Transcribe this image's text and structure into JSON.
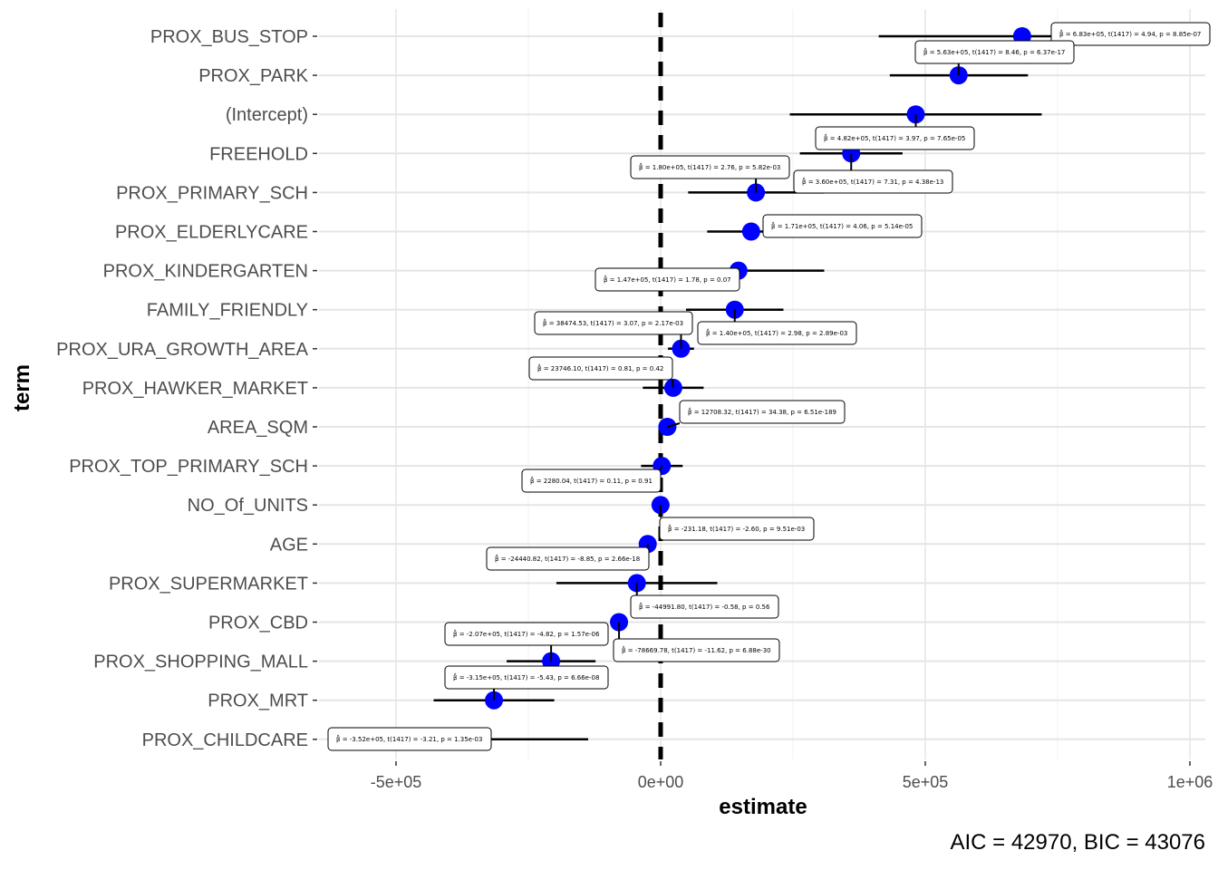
{
  "chart_data": {
    "type": "coefficient-plot",
    "xlabel": "estimate",
    "ylabel": "term",
    "caption": "AIC = 42970, BIC = 43076",
    "xlim": [
      -620000,
      1050000
    ],
    "xticks": [
      -500000,
      0,
      500000,
      1000000
    ],
    "xtick_labels": [
      "-5e+05",
      "0e+00",
      "5e+05",
      "1e+06"
    ],
    "reference_line": 0,
    "point_color": "#0000ff",
    "terms": [
      {
        "term": "PROX_BUS_STOP",
        "estimate": 683000,
        "low": 412000,
        "high": 955000,
        "label": "β̂ = 6.83e+05, t(1417) = 4.94, p = 8.85e-07"
      },
      {
        "term": "PROX_PARK",
        "estimate": 563000,
        "low": 433000,
        "high": 694000,
        "label": "β̂ = 5.63e+05, t(1417) = 8.46, p = 6.37e-17"
      },
      {
        "term": "(Intercept)",
        "estimate": 482000,
        "low": 244000,
        "high": 720000,
        "label": "β̂ = 4.82e+05, t(1417) = 3.97, p = 7.65e-05"
      },
      {
        "term": "FREEHOLD",
        "estimate": 360000,
        "low": 263000,
        "high": 457000,
        "label": "β̂ = 3.60e+05, t(1417) = 7.31, p = 4.38e-13"
      },
      {
        "term": "PROX_PRIMARY_SCH",
        "estimate": 180000,
        "low": 52000,
        "high": 308000,
        "label": "β̂ = 1.80e+05, t(1417) = 2.76, p = 5.82e-03"
      },
      {
        "term": "PROX_ELDERLYCARE",
        "estimate": 171000,
        "low": 88000,
        "high": 254000,
        "label": "β̂ = 1.71e+05, t(1417) = 4.06, p = 5.14e-05"
      },
      {
        "term": "PROX_KINDERGARTEN",
        "estimate": 147000,
        "low": -15000,
        "high": 309000,
        "label": "β̂ = 1.47e+05, t(1417) = 1.78, p = 0.07"
      },
      {
        "term": "FAMILY_FRIENDLY",
        "estimate": 140000,
        "low": 48000,
        "high": 232000,
        "label": "β̂ = 1.40e+05, t(1417) = 2.98, p = 2.89e-03"
      },
      {
        "term": "PROX_URA_GROWTH_AREA",
        "estimate": 38474.53,
        "low": 13900,
        "high": 63000,
        "label": "β̂ = 38474.53, t(1417) = 3.07, p = 2.17e-03"
      },
      {
        "term": "PROX_HAWKER_MARKET",
        "estimate": 23746.1,
        "low": -33700,
        "high": 81200,
        "label": "β̂ = 23746.10, t(1417) = 0.81, p = 0.42"
      },
      {
        "term": "AREA_SQM",
        "estimate": 12708.32,
        "low": 12000,
        "high": 13400,
        "label": "β̂ = 12708.32, t(1417) = 34.38, p = 6.51e-189"
      },
      {
        "term": "PROX_TOP_PRIMARY_SCH",
        "estimate": 2280.04,
        "low": -37000,
        "high": 41600,
        "label": "β̂ = 2280.04, t(1417) = 0.11, p = 0.91"
      },
      {
        "term": "NO_Of_UNITS",
        "estimate": -231.18,
        "low": -405,
        "high": -57,
        "label": "β̂ = -231.18, t(1417) = -2.60, p = 9.51e-03"
      },
      {
        "term": "AGE",
        "estimate": -24440.82,
        "low": -29900,
        "high": -19000,
        "label": "β̂ = -24440.82, t(1417) = -8.85, p = 2.66e-18"
      },
      {
        "term": "PROX_SUPERMARKET",
        "estimate": -44991.8,
        "low": -197000,
        "high": 107000,
        "label": "β̂ = -44991.80, t(1417) = -0.58, p = 0.56"
      },
      {
        "term": "PROX_CBD",
        "estimate": -78669.78,
        "low": -91900,
        "high": -65400,
        "label": "β̂ = -78669.78, t(1417) = -11.62, p = 6.88e-30"
      },
      {
        "term": "PROX_SHOPPING_MALL",
        "estimate": -207000,
        "low": -291000,
        "high": -123000,
        "label": "β̂ = -2.07e+05, t(1417) = -4.82, p = 1.57e-06"
      },
      {
        "term": "PROX_MRT",
        "estimate": -315000,
        "low": -429000,
        "high": -201000,
        "label": "β̂ = -3.15e+05, t(1417) = -5.43, p = 6.66e-08"
      },
      {
        "term": "PROX_CHILDCARE",
        "estimate": -352000,
        "low": -567000,
        "high": -137000,
        "label": "β̂ = -3.52e+05, t(1417) = -3.21, p = 1.35e-03"
      }
    ]
  }
}
